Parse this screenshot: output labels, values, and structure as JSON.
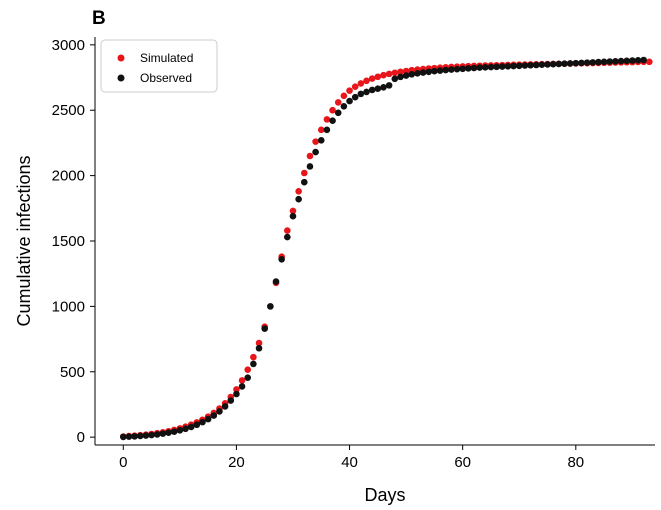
{
  "panel_label": "B",
  "chart_data": {
    "type": "scatter",
    "title": "",
    "xlabel": "Days",
    "ylabel": "Cumulative infections",
    "xlim": [
      -5,
      94
    ],
    "ylim": [
      -60,
      3060
    ],
    "xticks": [
      0,
      20,
      40,
      60,
      80
    ],
    "yticks": [
      0,
      500,
      1000,
      1500,
      2000,
      2500,
      3000
    ],
    "grid": false,
    "legend_position": "top-left",
    "series": [
      {
        "name": "Simulated",
        "color": "#e8161b",
        "x": [
          0,
          1,
          2,
          3,
          4,
          5,
          6,
          7,
          8,
          9,
          10,
          11,
          12,
          13,
          14,
          15,
          16,
          17,
          18,
          19,
          20,
          21,
          22,
          23,
          24,
          25,
          26,
          27,
          28,
          29,
          30,
          31,
          32,
          33,
          34,
          35,
          36,
          37,
          38,
          39,
          40,
          41,
          42,
          43,
          44,
          45,
          46,
          47,
          48,
          49,
          50,
          51,
          52,
          53,
          54,
          55,
          56,
          57,
          58,
          59,
          60,
          61,
          62,
          63,
          64,
          65,
          66,
          67,
          68,
          69,
          70,
          71,
          72,
          73,
          74,
          75,
          76,
          77,
          78,
          79,
          80,
          81,
          82,
          83,
          84,
          85,
          86,
          87,
          88,
          89,
          90,
          91,
          92,
          93
        ],
        "y": [
          5,
          8,
          11,
          15,
          19,
          24,
          30,
          37,
          45,
          55,
          67,
          80,
          95,
          113,
          133,
          157,
          185,
          219,
          259,
          307,
          365,
          434,
          516,
          612,
          720,
          845,
          1000,
          1180,
          1380,
          1580,
          1730,
          1880,
          2020,
          2150,
          2260,
          2350,
          2430,
          2500,
          2560,
          2610,
          2650,
          2680,
          2705,
          2725,
          2742,
          2756,
          2768,
          2778,
          2786,
          2794,
          2800,
          2806,
          2811,
          2815,
          2819,
          2822,
          2825,
          2828,
          2831,
          2833,
          2835,
          2837,
          2839,
          2840,
          2842,
          2843,
          2844,
          2845,
          2846,
          2847,
          2848,
          2849,
          2850,
          2851,
          2852,
          2853,
          2854,
          2855,
          2856,
          2857,
          2858,
          2859,
          2860,
          2861,
          2862,
          2863,
          2864,
          2865,
          2866,
          2867,
          2868,
          2869,
          2870,
          2870
        ]
      },
      {
        "name": "Observed",
        "color": "#111111",
        "x": [
          0,
          1,
          2,
          3,
          4,
          5,
          6,
          7,
          8,
          9,
          10,
          11,
          12,
          13,
          14,
          15,
          16,
          17,
          18,
          19,
          20,
          21,
          22,
          23,
          24,
          25,
          26,
          27,
          28,
          29,
          30,
          31,
          32,
          33,
          34,
          35,
          36,
          37,
          38,
          39,
          40,
          41,
          42,
          43,
          44,
          45,
          46,
          47,
          48,
          49,
          50,
          51,
          52,
          53,
          54,
          55,
          56,
          57,
          58,
          59,
          60,
          61,
          62,
          63,
          64,
          65,
          66,
          67,
          68,
          69,
          70,
          71,
          72,
          73,
          74,
          75,
          76,
          77,
          78,
          79,
          80,
          81,
          82,
          83,
          84,
          85,
          86,
          87,
          88,
          89,
          90,
          91,
          92
        ],
        "y": [
          2,
          4,
          6,
          9,
          12,
          16,
          21,
          27,
          34,
          42,
          52,
          64,
          78,
          95,
          115,
          138,
          165,
          197,
          235,
          280,
          330,
          388,
          455,
          560,
          680,
          830,
          1000,
          1190,
          1360,
          1530,
          1690,
          1820,
          1950,
          2070,
          2180,
          2270,
          2350,
          2420,
          2480,
          2530,
          2570,
          2600,
          2625,
          2640,
          2655,
          2665,
          2675,
          2690,
          2740,
          2755,
          2765,
          2775,
          2782,
          2788,
          2794,
          2799,
          2803,
          2807,
          2811,
          2814,
          2817,
          2820,
          2823,
          2826,
          2828,
          2830,
          2832,
          2834,
          2836,
          2838,
          2840,
          2842,
          2844,
          2846,
          2848,
          2850,
          2852,
          2854,
          2856,
          2858,
          2860,
          2862,
          2864,
          2866,
          2868,
          2870,
          2872,
          2874,
          2876,
          2878,
          2880,
          2882,
          2884
        ]
      }
    ]
  }
}
